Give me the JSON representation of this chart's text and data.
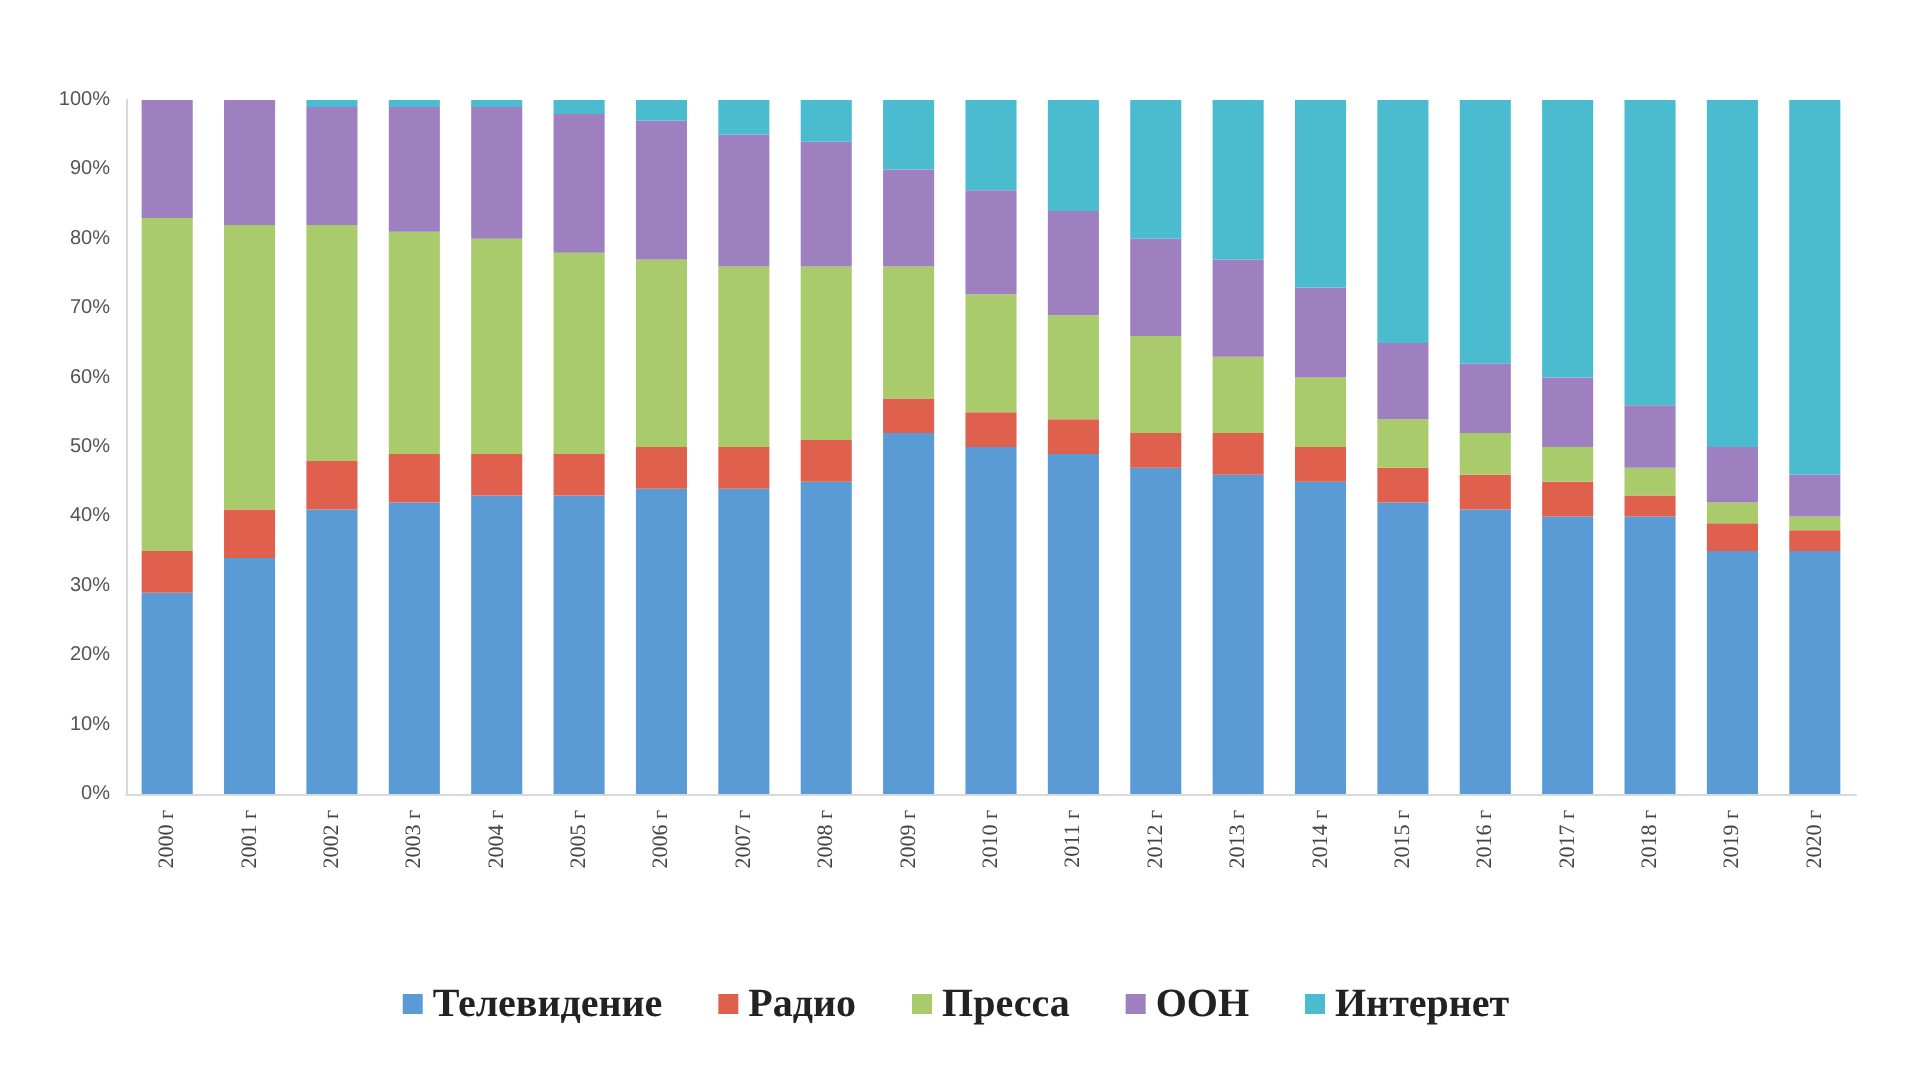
{
  "chart_data": {
    "type": "bar",
    "stacked": true,
    "legend": "bottom",
    "grid": false,
    "categories": [
      "2000 г",
      "2001 г",
      "2002 г",
      "2003 г",
      "2004 г",
      "2005 г",
      "2006 г",
      "2007 г",
      "2008 г",
      "2009 г",
      "2010 г",
      "2011 г",
      "2012 г",
      "2013 г",
      "2014 г",
      "2015 г",
      "2016 г",
      "2017 г",
      "2018 г",
      "2019 г",
      "2020 г"
    ],
    "ylim": [
      0,
      100
    ],
    "yticks": [
      {
        "value": 0,
        "label": "0%"
      },
      {
        "value": 10,
        "label": "10%"
      },
      {
        "value": 20,
        "label": "20%"
      },
      {
        "value": 30,
        "label": "30%"
      },
      {
        "value": 40,
        "label": "40%"
      },
      {
        "value": 50,
        "label": "50%"
      },
      {
        "value": 60,
        "label": "60%"
      },
      {
        "value": 70,
        "label": "70%"
      },
      {
        "value": 80,
        "label": "80%"
      },
      {
        "value": 90,
        "label": "90%"
      },
      {
        "value": 100,
        "label": "100%"
      }
    ],
    "series": [
      {
        "name": "Телевидение",
        "color": "#5b9bd5",
        "values": [
          29,
          34,
          41,
          42,
          43,
          43,
          44,
          44,
          45,
          52,
          50,
          49,
          47,
          46,
          45,
          42,
          41,
          40,
          40,
          35,
          35
        ]
      },
      {
        "name": "Радио",
        "color": "#e0604e",
        "values": [
          6,
          7,
          7,
          7,
          6,
          6,
          6,
          6,
          6,
          5,
          5,
          5,
          5,
          6,
          5,
          5,
          5,
          5,
          3,
          4,
          3
        ]
      },
      {
        "name": "Пресса",
        "color": "#a9cb6b",
        "values": [
          48,
          41,
          34,
          32,
          31,
          29,
          27,
          26,
          25,
          19,
          17,
          15,
          14,
          11,
          10,
          7,
          6,
          5,
          4,
          3,
          2
        ]
      },
      {
        "name": "ООН",
        "color": "#9e7fbf",
        "values": [
          17,
          18,
          17,
          18,
          19,
          20,
          20,
          19,
          18,
          14,
          15,
          15,
          14,
          14,
          13,
          11,
          10,
          10,
          9,
          8,
          6
        ]
      },
      {
        "name": "Интернет",
        "color": "#4bbbd0",
        "values": [
          0,
          0,
          1,
          1,
          1,
          2,
          3,
          5,
          6,
          10,
          13,
          16,
          20,
          23,
          27,
          35,
          38,
          40,
          44,
          50,
          54
        ]
      }
    ]
  }
}
